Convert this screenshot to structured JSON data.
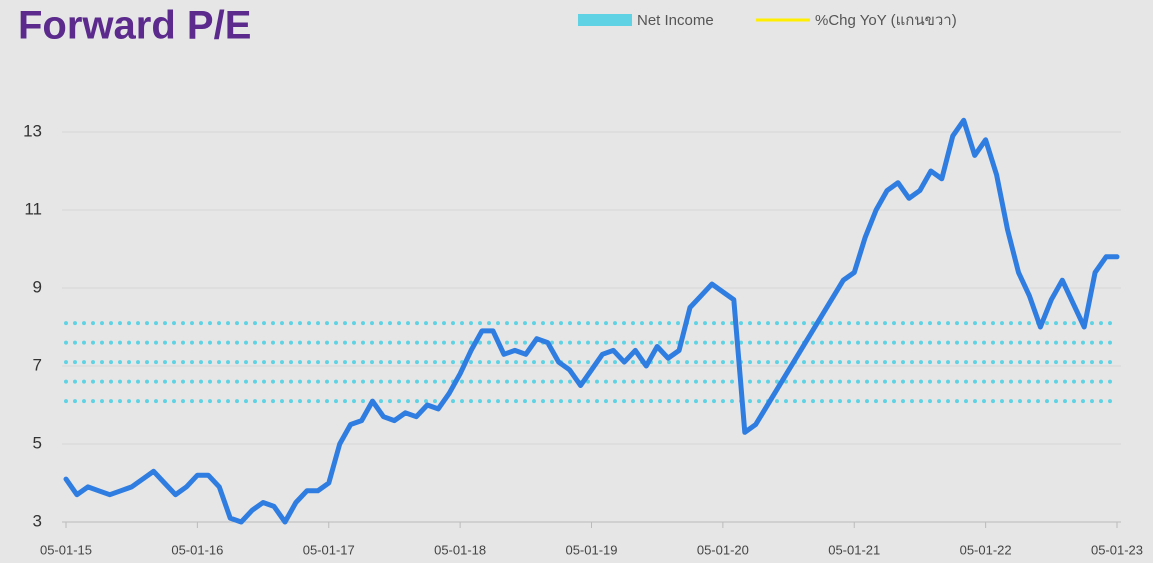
{
  "chart_data": {
    "type": "line",
    "title": "Forward P/E",
    "title_color": "#5b2a8c",
    "legend": [
      {
        "name": "Net Income",
        "color": "#5fd3e3",
        "shape": "box"
      },
      {
        "name": "%Chg YoY (แกนขวา)",
        "color": "#ffee00",
        "shape": "line"
      }
    ],
    "color": "#2f7de1",
    "reference_lines": [
      6.1,
      6.6,
      7.1,
      7.6,
      8.1
    ],
    "reference_color": "#5fd3e3",
    "x": [
      "05-01-15",
      "05-02-15",
      "05-03-15",
      "05-04-15",
      "05-05-15",
      "05-06-15",
      "05-07-15",
      "05-08-15",
      "05-09-15",
      "05-10-15",
      "05-11-15",
      "05-12-15",
      "05-01-16",
      "05-02-16",
      "05-03-16",
      "05-04-16",
      "05-05-16",
      "05-06-16",
      "05-07-16",
      "05-08-16",
      "05-09-16",
      "05-10-16",
      "05-11-16",
      "05-12-16",
      "05-01-17",
      "05-02-17",
      "05-03-17",
      "05-04-17",
      "05-05-17",
      "05-06-17",
      "05-07-17",
      "05-08-17",
      "05-09-17",
      "05-10-17",
      "05-11-17",
      "05-12-17",
      "05-01-18",
      "05-02-18",
      "05-03-18",
      "05-04-18",
      "05-05-18",
      "05-06-18",
      "05-07-18",
      "05-08-18",
      "05-09-18",
      "05-10-18",
      "05-11-18",
      "05-12-18",
      "05-01-19",
      "05-02-19",
      "05-03-19",
      "05-04-19",
      "05-05-19",
      "05-06-19",
      "05-07-19",
      "05-08-19",
      "05-09-19",
      "05-10-19",
      "05-11-19",
      "05-12-19",
      "05-01-20",
      "05-02-20",
      "05-03-20",
      "05-04-20",
      "05-12-20",
      "05-01-21",
      "05-02-21",
      "05-03-21",
      "05-04-21",
      "05-05-21",
      "05-06-21",
      "05-07-21",
      "05-08-21",
      "05-09-21",
      "05-10-21",
      "05-11-21",
      "05-12-21",
      "05-01-22",
      "05-02-22",
      "05-03-22",
      "05-04-22",
      "05-05-22",
      "05-06-22",
      "05-07-22",
      "05-08-22",
      "05-09-22",
      "05-10-22",
      "05-11-22",
      "05-12-22",
      "05-01-23"
    ],
    "values": [
      4.1,
      3.7,
      3.9,
      3.8,
      3.7,
      3.8,
      3.9,
      4.1,
      4.3,
      4.0,
      3.7,
      3.9,
      4.2,
      4.2,
      3.9,
      3.1,
      3.0,
      3.3,
      3.5,
      3.4,
      3.0,
      3.5,
      3.8,
      3.8,
      4.0,
      5.0,
      5.5,
      5.6,
      6.1,
      5.7,
      5.6,
      5.8,
      5.7,
      6.0,
      5.9,
      6.3,
      6.8,
      7.4,
      7.9,
      7.9,
      7.3,
      7.4,
      7.3,
      7.7,
      7.6,
      7.1,
      6.9,
      6.5,
      6.9,
      7.3,
      7.4,
      7.1,
      7.4,
      7.0,
      7.5,
      7.2,
      7.4,
      8.5,
      8.8,
      9.1,
      8.9,
      8.7,
      5.3,
      5.5,
      9.2,
      9.4,
      10.3,
      11.0,
      11.5,
      11.7,
      11.3,
      11.5,
      12.0,
      11.8,
      12.9,
      13.3,
      12.4,
      12.8,
      11.9,
      10.5,
      9.4,
      8.8,
      8.0,
      8.7,
      9.2,
      8.6,
      8.0,
      9.4,
      9.8,
      9.8
    ],
    "xlim": [
      "05-01-15",
      "05-01-23"
    ],
    "xticks": [
      "05-01-15",
      "05-01-16",
      "05-01-17",
      "05-01-18",
      "05-01-19",
      "05-01-20",
      "05-01-21",
      "05-01-22",
      "05-01-23"
    ],
    "ylim": [
      3,
      14
    ],
    "yticks": [
      3,
      5,
      7,
      9,
      11,
      13
    ],
    "grid": true
  }
}
